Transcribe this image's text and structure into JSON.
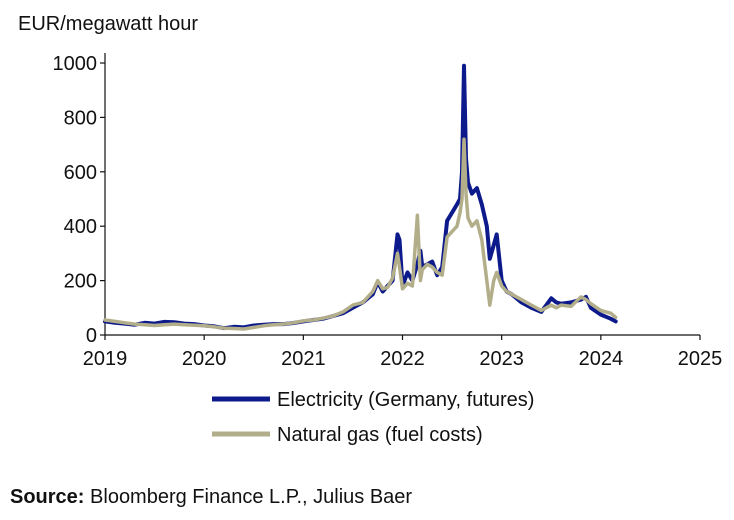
{
  "chart_data": {
    "type": "line",
    "title": "",
    "ylabel": "EUR/megawatt hour",
    "xlabel": "",
    "x_ticks": [
      "2019",
      "2020",
      "2021",
      "2022",
      "2023",
      "2024",
      "2025"
    ],
    "y_ticks": [
      "0",
      "200",
      "400",
      "600",
      "800",
      "1000"
    ],
    "xlim": [
      2019,
      2025
    ],
    "ylim": [
      0,
      1000
    ],
    "grid": false,
    "legend_position": "bottom-center",
    "series": [
      {
        "name": "Electricity (Germany, futures)",
        "color": "#0d1a8c",
        "x": [
          2019.0,
          2019.1,
          2019.2,
          2019.3,
          2019.4,
          2019.5,
          2019.6,
          2019.7,
          2019.8,
          2019.9,
          2020.0,
          2020.1,
          2020.2,
          2020.3,
          2020.4,
          2020.5,
          2020.6,
          2020.7,
          2020.8,
          2020.9,
          2021.0,
          2021.1,
          2021.2,
          2021.3,
          2021.4,
          2021.5,
          2021.6,
          2021.7,
          2021.75,
          2021.8,
          2021.85,
          2021.9,
          2021.95,
          2021.97,
          2022.0,
          2022.05,
          2022.1,
          2022.15,
          2022.18,
          2022.2,
          2022.25,
          2022.3,
          2022.35,
          2022.4,
          2022.45,
          2022.5,
          2022.55,
          2022.58,
          2022.6,
          2022.62,
          2022.64,
          2022.66,
          2022.7,
          2022.75,
          2022.8,
          2022.85,
          2022.88,
          2022.92,
          2022.95,
          2023.0,
          2023.05,
          2023.1,
          2023.2,
          2023.3,
          2023.4,
          2023.5,
          2023.55,
          2023.6,
          2023.7,
          2023.8,
          2023.85,
          2023.9,
          2024.0,
          2024.1,
          2024.15
        ],
        "y": [
          50,
          45,
          42,
          38,
          45,
          42,
          48,
          47,
          42,
          40,
          35,
          32,
          25,
          30,
          28,
          35,
          38,
          40,
          40,
          44,
          50,
          55,
          60,
          70,
          80,
          100,
          120,
          150,
          195,
          160,
          180,
          200,
          370,
          350,
          180,
          230,
          200,
          260,
          310,
          250,
          260,
          270,
          220,
          250,
          420,
          450,
          480,
          500,
          600,
          990,
          650,
          560,
          520,
          540,
          480,
          400,
          280,
          330,
          370,
          200,
          160,
          150,
          120,
          100,
          85,
          135,
          120,
          115,
          120,
          130,
          140,
          100,
          75,
          60,
          50
        ]
      },
      {
        "name": "Natural gas (fuel costs)",
        "color": "#b3ae8a",
        "x": [
          2019.0,
          2019.1,
          2019.2,
          2019.3,
          2019.4,
          2019.5,
          2019.6,
          2019.7,
          2019.8,
          2019.9,
          2020.0,
          2020.1,
          2020.2,
          2020.3,
          2020.4,
          2020.5,
          2020.6,
          2020.7,
          2020.8,
          2020.9,
          2021.0,
          2021.1,
          2021.2,
          2021.3,
          2021.4,
          2021.5,
          2021.6,
          2021.7,
          2021.75,
          2021.8,
          2021.85,
          2021.9,
          2021.95,
          2021.97,
          2022.0,
          2022.05,
          2022.1,
          2022.15,
          2022.18,
          2022.2,
          2022.25,
          2022.3,
          2022.35,
          2022.4,
          2022.45,
          2022.5,
          2022.55,
          2022.58,
          2022.6,
          2022.62,
          2022.64,
          2022.66,
          2022.7,
          2022.75,
          2022.8,
          2022.85,
          2022.88,
          2022.92,
          2022.95,
          2023.0,
          2023.05,
          2023.1,
          2023.2,
          2023.3,
          2023.4,
          2023.5,
          2023.55,
          2023.6,
          2023.7,
          2023.8,
          2023.85,
          2023.9,
          2024.0,
          2024.1,
          2024.15
        ],
        "y": [
          55,
          50,
          45,
          40,
          38,
          35,
          38,
          40,
          38,
          36,
          34,
          30,
          25,
          24,
          22,
          28,
          34,
          38,
          40,
          45,
          52,
          55,
          62,
          70,
          85,
          110,
          120,
          160,
          200,
          170,
          175,
          210,
          300,
          250,
          170,
          190,
          180,
          440,
          200,
          240,
          260,
          250,
          230,
          220,
          360,
          380,
          400,
          450,
          500,
          720,
          520,
          430,
          400,
          420,
          350,
          200,
          110,
          200,
          230,
          180,
          160,
          150,
          130,
          110,
          90,
          110,
          100,
          110,
          105,
          140,
          130,
          115,
          90,
          80,
          65
        ]
      }
    ]
  },
  "footer": {
    "source_label": "Source:",
    "source_text": "Bloomberg Finance L.P., Julius Baer"
  }
}
